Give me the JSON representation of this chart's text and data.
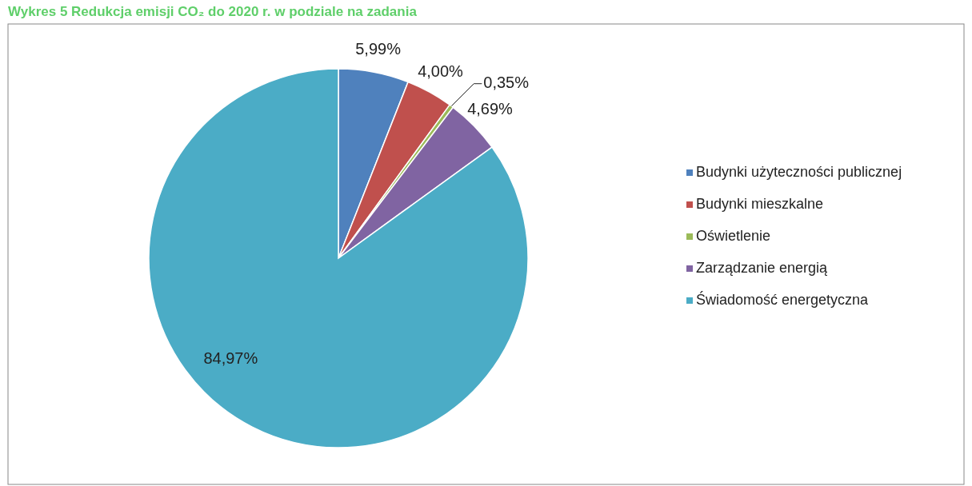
{
  "chart_data": {
    "type": "pie",
    "title": "Wykres 5 Redukcja emisji CO₂ do 2020 r. w podziale na zadania",
    "categories": [
      "Budynki użyteczności publicznej",
      "Budynki mieszkalne",
      "Oświetlenie",
      "Zarządzanie energią",
      "Świadomość energetyczna"
    ],
    "values": [
      5.99,
      4.0,
      0.35,
      4.69,
      84.97
    ],
    "value_labels": [
      "5,99%",
      "4,00%",
      "0,35%",
      "4,69%",
      "84,97%"
    ],
    "colors": [
      "#4f81bd",
      "#c0504d",
      "#9bbb59",
      "#8064a2",
      "#4bacc6"
    ],
    "legend": "right"
  }
}
